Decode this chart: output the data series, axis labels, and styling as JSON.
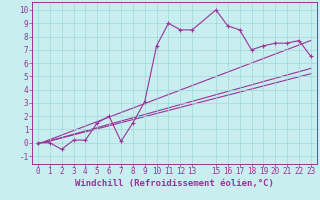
{
  "xlabel": "Windchill (Refroidissement éolien,°C)",
  "background_color": "#c8eef0",
  "line_color": "#993399",
  "xlim": [
    -0.5,
    23.5
  ],
  "ylim": [
    -1.6,
    10.6
  ],
  "xticks": [
    0,
    1,
    2,
    3,
    4,
    5,
    6,
    7,
    8,
    9,
    10,
    11,
    12,
    13,
    15,
    16,
    17,
    18,
    19,
    20,
    21,
    22,
    23
  ],
  "yticks": [
    -1,
    0,
    1,
    2,
    3,
    4,
    5,
    6,
    7,
    8,
    9,
    10
  ],
  "series1_x": [
    0,
    1,
    2,
    3,
    4,
    5,
    6,
    7,
    8,
    9,
    10,
    11,
    12,
    13,
    15,
    16,
    17,
    18,
    19,
    20,
    21,
    22,
    23
  ],
  "series1_y": [
    0,
    0,
    -0.5,
    0.2,
    0.2,
    1.5,
    2.0,
    0.1,
    1.5,
    3.1,
    7.3,
    9.0,
    8.5,
    8.5,
    10,
    8.8,
    8.5,
    7.0,
    7.3,
    7.5,
    7.5,
    7.7,
    6.5
  ],
  "line1_x": [
    0,
    23
  ],
  "line1_y": [
    -0.1,
    5.2
  ],
  "line2_x": [
    0,
    23
  ],
  "line2_y": [
    -0.1,
    5.6
  ],
  "line3_x": [
    0,
    23
  ],
  "line3_y": [
    -0.1,
    7.7
  ],
  "grid_color": "#a0d8d8",
  "tick_fontsize": 5.5,
  "xlabel_fontsize": 6.5
}
